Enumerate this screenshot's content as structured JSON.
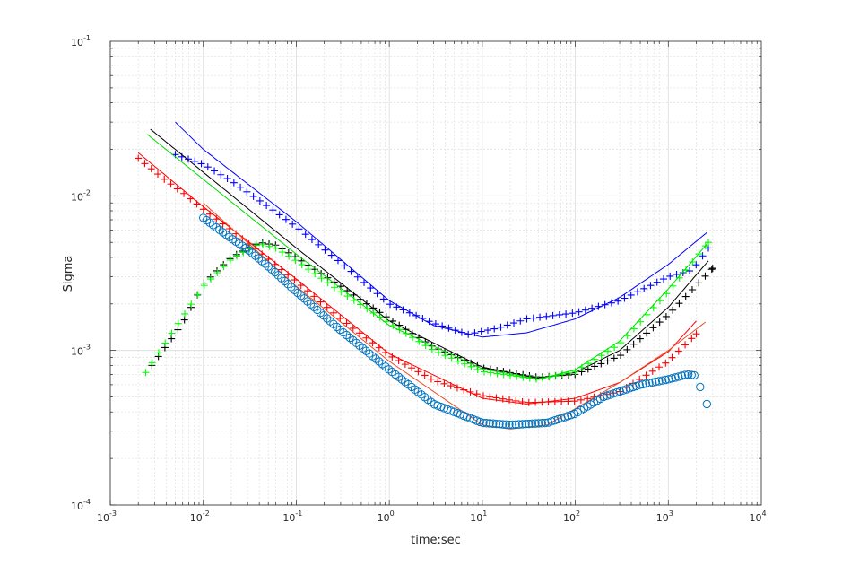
{
  "chart_data": {
    "type": "scatter",
    "title": "",
    "xlabel": "time:sec",
    "ylabel": "Sigma",
    "xscale": "log",
    "yscale": "log",
    "xlim": [
      0.001,
      10000
    ],
    "ylim": [
      0.0001,
      0.1
    ],
    "grid": "major-and-minor",
    "legend": "none",
    "x_ticks": [
      {
        "base": "10",
        "exp": "-3"
      },
      {
        "base": "10",
        "exp": "-2"
      },
      {
        "base": "10",
        "exp": "-1"
      },
      {
        "base": "10",
        "exp": "0"
      },
      {
        "base": "10",
        "exp": "1"
      },
      {
        "base": "10",
        "exp": "2"
      },
      {
        "base": "10",
        "exp": "3"
      },
      {
        "base": "10",
        "exp": "4"
      }
    ],
    "y_ticks": [
      {
        "base": "10",
        "exp": "-4"
      },
      {
        "base": "10",
        "exp": "-3"
      },
      {
        "base": "10",
        "exp": "-2"
      },
      {
        "base": "10",
        "exp": "-1"
      }
    ],
    "series": [
      {
        "name": "blue-data",
        "kind": "marker",
        "marker": "+",
        "color": "#0000ff",
        "sample_step_decades": 0.07,
        "points": [
          [
            0.005,
            0.0185
          ],
          [
            0.01,
            0.016
          ],
          [
            0.02,
            0.0125
          ],
          [
            0.05,
            0.0085
          ],
          [
            0.1,
            0.0063
          ],
          [
            0.3,
            0.0037
          ],
          [
            1,
            0.002
          ],
          [
            3,
            0.0015
          ],
          [
            7,
            0.00127
          ],
          [
            15,
            0.0014
          ],
          [
            30,
            0.0016
          ],
          [
            100,
            0.00175
          ],
          [
            300,
            0.0021
          ],
          [
            1000,
            0.003
          ],
          [
            1800,
            0.0033
          ],
          [
            2700,
            0.0046
          ]
        ]
      },
      {
        "name": "blue-fit",
        "kind": "line",
        "color": "#0000ff",
        "points": [
          [
            0.005,
            0.03
          ],
          [
            0.01,
            0.02
          ],
          [
            0.1,
            0.0068
          ],
          [
            1,
            0.0021
          ],
          [
            3,
            0.00145
          ],
          [
            10,
            0.00122
          ],
          [
            30,
            0.0013
          ],
          [
            100,
            0.0016
          ],
          [
            300,
            0.0022
          ],
          [
            1000,
            0.0036
          ],
          [
            2700,
            0.0059
          ]
        ]
      },
      {
        "name": "black-data",
        "kind": "marker",
        "marker": "+",
        "color": "#000000",
        "sample_step_decades": 0.07,
        "points": [
          [
            0.0028,
            0.0008
          ],
          [
            0.006,
            0.0015
          ],
          [
            0.01,
            0.0027
          ],
          [
            0.02,
            0.004
          ],
          [
            0.04,
            0.005
          ],
          [
            0.06,
            0.0048
          ],
          [
            0.1,
            0.004
          ],
          [
            0.3,
            0.0026
          ],
          [
            1,
            0.0016
          ],
          [
            3,
            0.00105
          ],
          [
            10,
            0.00077
          ],
          [
            40,
            0.00067
          ],
          [
            100,
            0.0007
          ],
          [
            300,
            0.00092
          ],
          [
            1000,
            0.0017
          ],
          [
            3000,
            0.0034
          ]
        ]
      },
      {
        "name": "black-fit",
        "kind": "line",
        "color": "#000000",
        "points": [
          [
            0.0027,
            0.027
          ],
          [
            0.1,
            0.0046
          ],
          [
            1,
            0.00155
          ],
          [
            10,
            0.00078
          ],
          [
            40,
            0.00066
          ],
          [
            100,
            0.00072
          ],
          [
            300,
            0.001
          ],
          [
            1000,
            0.0019
          ],
          [
            2700,
            0.0038
          ]
        ]
      },
      {
        "name": "green-data",
        "kind": "marker",
        "marker": "+",
        "color": "#00ff00",
        "sample_step_decades": 0.07,
        "points": [
          [
            0.0024,
            0.00072
          ],
          [
            0.005,
            0.0014
          ],
          [
            0.01,
            0.0026
          ],
          [
            0.02,
            0.0039
          ],
          [
            0.04,
            0.0049
          ],
          [
            0.06,
            0.0046
          ],
          [
            0.1,
            0.0038
          ],
          [
            0.3,
            0.0024
          ],
          [
            1,
            0.0015
          ],
          [
            3,
            0.001
          ],
          [
            10,
            0.00073
          ],
          [
            40,
            0.00065
          ],
          [
            100,
            0.00073
          ],
          [
            300,
            0.0011
          ],
          [
            1000,
            0.0024
          ],
          [
            2700,
            0.005
          ]
        ]
      },
      {
        "name": "green-fit",
        "kind": "line",
        "color": "#00dd00",
        "points": [
          [
            0.0025,
            0.025
          ],
          [
            0.1,
            0.0042
          ],
          [
            1,
            0.00145
          ],
          [
            10,
            0.00076
          ],
          [
            40,
            0.00065
          ],
          [
            100,
            0.00075
          ],
          [
            300,
            0.00115
          ],
          [
            1000,
            0.0025
          ],
          [
            2700,
            0.005
          ]
        ]
      },
      {
        "name": "red-data",
        "kind": "marker",
        "marker": "+",
        "color": "#ff0000",
        "sample_step_decades": 0.07,
        "points": [
          [
            0.002,
            0.0175
          ],
          [
            0.004,
            0.0125
          ],
          [
            0.006,
            0.0105
          ],
          [
            0.01,
            0.0082
          ],
          [
            0.02,
            0.006
          ],
          [
            0.05,
            0.0039
          ],
          [
            0.1,
            0.0028
          ],
          [
            0.3,
            0.0016
          ],
          [
            1,
            0.00093
          ],
          [
            3,
            0.00064
          ],
          [
            10,
            0.00051
          ],
          [
            30,
            0.00046
          ],
          [
            100,
            0.00047
          ],
          [
            300,
            0.00054
          ],
          [
            1000,
            0.00085
          ],
          [
            2000,
            0.00128
          ]
        ]
      },
      {
        "name": "red-fit",
        "kind": "line",
        "color": "#ff0000",
        "points": [
          [
            0.002,
            0.019
          ],
          [
            0.01,
            0.0085
          ],
          [
            0.1,
            0.0029
          ],
          [
            1,
            0.00095
          ],
          [
            10,
            0.00049
          ],
          [
            30,
            0.00045
          ],
          [
            100,
            0.00049
          ],
          [
            300,
            0.00062
          ],
          [
            1000,
            0.00098
          ],
          [
            2000,
            0.00155
          ]
        ]
      },
      {
        "name": "circle-fit",
        "kind": "line",
        "color": "#e8502a",
        "points": [
          [
            0.01,
            0.009
          ],
          [
            0.1,
            0.0026
          ],
          [
            1,
            0.00085
          ],
          [
            10,
            0.00033
          ],
          [
            20,
            0.00031
          ],
          [
            50,
            0.00033
          ],
          [
            100,
            0.00042
          ],
          [
            300,
            0.00062
          ],
          [
            1000,
            0.001
          ],
          [
            2600,
            0.00155
          ]
        ]
      },
      {
        "name": "circle-data",
        "kind": "marker",
        "marker": "o",
        "color": "#0072bd",
        "sample_step_decades": 0.035,
        "points": [
          [
            0.01,
            0.0072
          ],
          [
            0.02,
            0.0053
          ],
          [
            0.03,
            0.0045
          ],
          [
            0.05,
            0.0035
          ],
          [
            0.1,
            0.0024
          ],
          [
            0.3,
            0.00135
          ],
          [
            1,
            0.00075
          ],
          [
            3,
            0.00045
          ],
          [
            10,
            0.00034
          ],
          [
            20,
            0.00033
          ],
          [
            50,
            0.00034
          ],
          [
            100,
            0.00039
          ],
          [
            200,
            0.0005
          ],
          [
            500,
            0.0006
          ],
          [
            1000,
            0.00065
          ],
          [
            1600,
            0.0007
          ],
          [
            1900,
            0.00069
          ]
        ],
        "extra_points": [
          [
            2200,
            0.00058
          ],
          [
            2600,
            0.00045
          ]
        ]
      }
    ]
  }
}
